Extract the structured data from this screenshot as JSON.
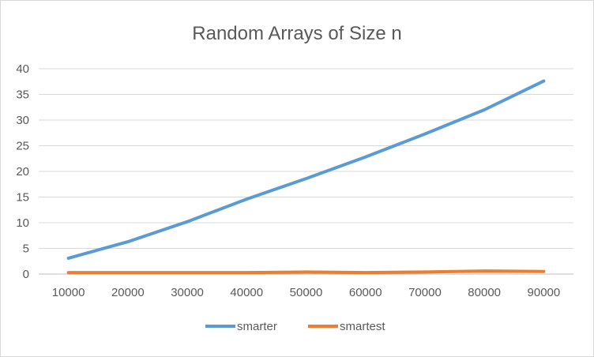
{
  "chart_data": {
    "type": "line",
    "title": "Random Arrays of Size n",
    "xlabel": "",
    "ylabel": "",
    "categories": [
      "10000",
      "20000",
      "30000",
      "40000",
      "50000",
      "60000",
      "70000",
      "80000",
      "90000"
    ],
    "yticks": [
      "0",
      "5",
      "10",
      "15",
      "20",
      "25",
      "30",
      "35",
      "40"
    ],
    "ylim": [
      0,
      40
    ],
    "grid": true,
    "legend": "bottom",
    "series": [
      {
        "name": "smarter",
        "color": "#5b9bd5",
        "values": [
          3.1,
          6.3,
          10.2,
          14.6,
          18.6,
          22.8,
          27.3,
          32.0,
          37.6
        ]
      },
      {
        "name": "smartest",
        "color": "#ed7d31",
        "values": [
          0.3,
          0.3,
          0.3,
          0.3,
          0.4,
          0.3,
          0.4,
          0.6,
          0.5
        ]
      }
    ]
  }
}
